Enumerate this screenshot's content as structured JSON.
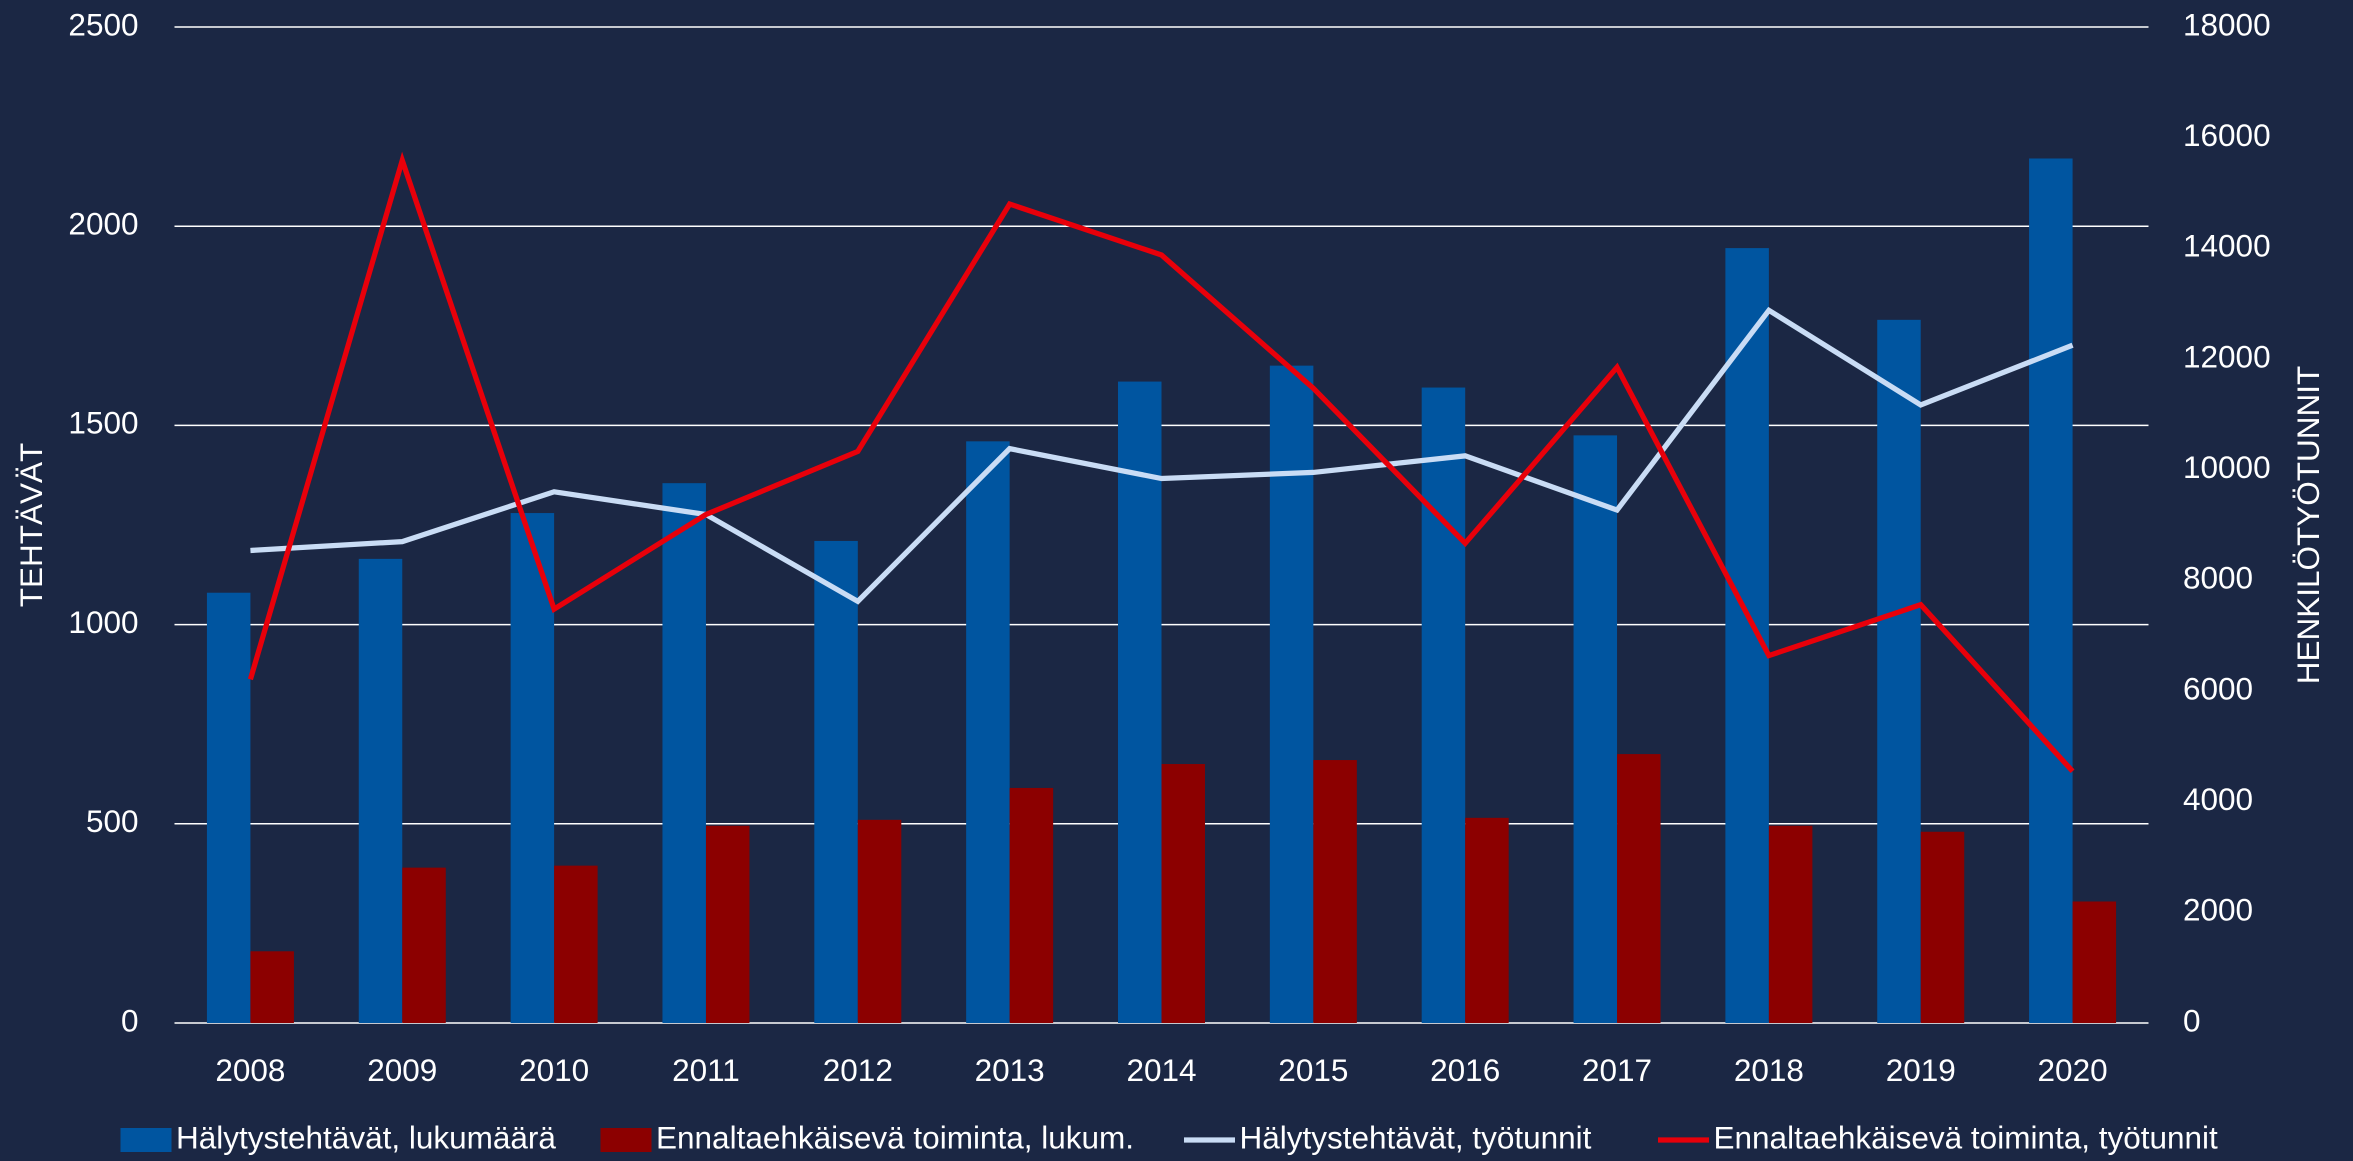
{
  "chart_data": {
    "type": "bar-line",
    "categories": [
      "2008",
      "2009",
      "2010",
      "2011",
      "2012",
      "2013",
      "2014",
      "2015",
      "2016",
      "2017",
      "2018",
      "2019",
      "2020"
    ],
    "ylabel": "TEHTÄVÄT",
    "y2label": "HENKILÖTYÖTUNNIT",
    "ylim": [
      0,
      2500
    ],
    "yticks": [
      0,
      500,
      1000,
      1500,
      2000,
      2500
    ],
    "y2lim": [
      0,
      18000
    ],
    "y2ticks": [
      0,
      2000,
      4000,
      6000,
      8000,
      10000,
      12000,
      14000,
      16000,
      18000
    ],
    "grid": true,
    "legend": "bottom",
    "series": [
      {
        "name": "Hälytystehtävät, lukumäärä",
        "type": "bar",
        "color": "#0055a0",
        "values": [
          1080,
          1165,
          1280,
          1355,
          1210,
          1460,
          1610,
          1650,
          1595,
          1475,
          1945,
          1765,
          2170
        ]
      },
      {
        "name": "Ennaltaehkäisevä toiminta, lukum.",
        "type": "bar",
        "color": "#8c0000",
        "values": [
          180,
          390,
          395,
          495,
          510,
          590,
          650,
          660,
          515,
          675,
          495,
          480,
          305
        ]
      },
      {
        "name": "Hälytystehtävät, työtunnit",
        "type": "line",
        "axis": "y2",
        "color": "#c9dcf5",
        "values": [
          8540,
          8700,
          9600,
          9190,
          7620,
          10380,
          9840,
          9950,
          10250,
          9270,
          12880,
          11170,
          12250
        ]
      },
      {
        "name": "Ennaltaehkäisevä toiminta, työtunnit",
        "type": "line",
        "axis": "y2",
        "color": "#e8000a",
        "values": [
          6210,
          15590,
          7480,
          9190,
          10330,
          14800,
          13880,
          11470,
          8670,
          11850,
          6640,
          7560,
          4550
        ]
      }
    ]
  }
}
